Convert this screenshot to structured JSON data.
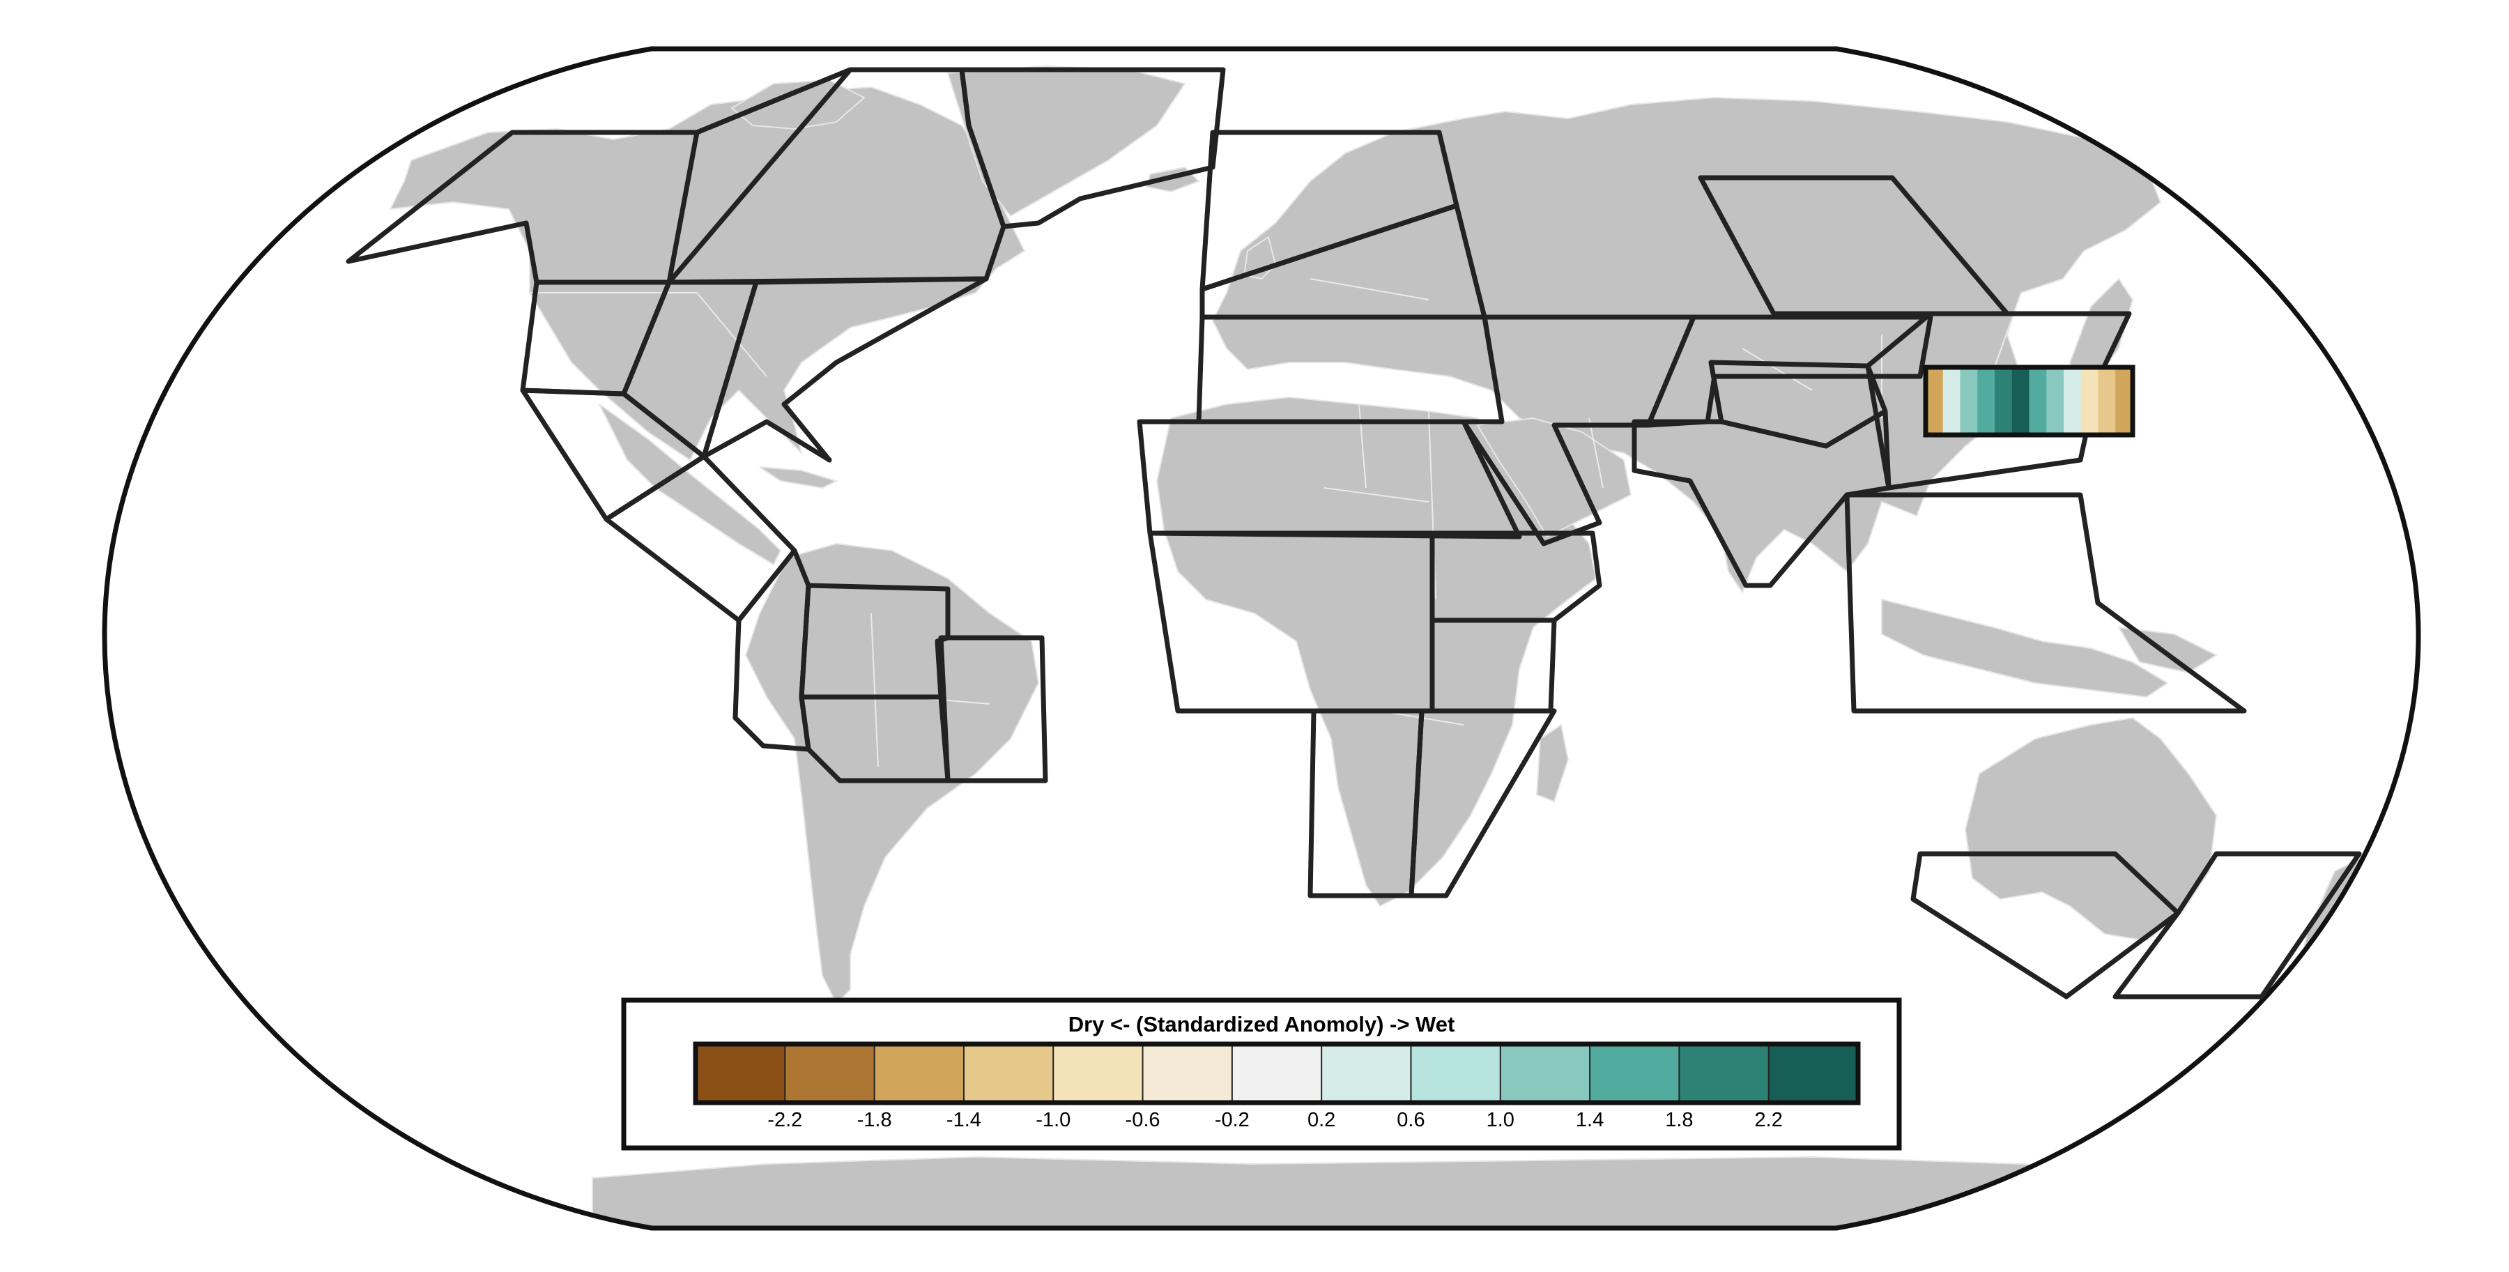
{
  "colorbar": {
    "title": "Dry <- (Standardized Anomoly) -> Wet",
    "tick_labels": [
      "-2.2",
      "-1.8",
      "-1.4",
      "-1.0",
      "-0.6",
      "-0.2",
      "0.2",
      "0.6",
      "1.0",
      "1.4",
      "1.8",
      "2.2"
    ],
    "colors": [
      "#8a5016",
      "#ad7733",
      "#d2a65a",
      "#e6c88a",
      "#f4e3b8",
      "#f5ead6",
      "#f1f1f1",
      "#d6ece8",
      "#b6e3de",
      "#88c8bf",
      "#52ab9f",
      "#2e8275",
      "#175f56"
    ]
  },
  "map": {
    "land_color": "#c2c2c2",
    "region_outline_color": "#222222"
  },
  "inset_swatch": {
    "colors": [
      "#d2a65a",
      "#d6ece8",
      "#88c8bf",
      "#52ab9f",
      "#2e8275",
      "#175f56",
      "#52ab9f",
      "#88c8bf",
      "#d6ece8",
      "#f4e3b8",
      "#e6c88a",
      "#d2a65a"
    ]
  }
}
